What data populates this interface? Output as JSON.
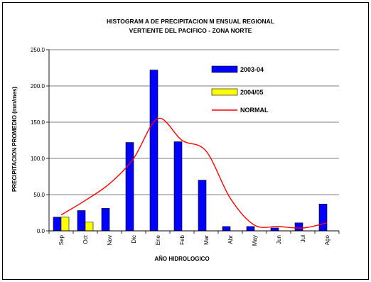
{
  "chart_data": {
    "type": "bar",
    "title": "HISTOGRAM A DE PRECIPITACION M ENSUAL REGIONAL",
    "subtitle": "VERTIENTE DEL PACIFICO - ZONA NORTE",
    "xlabel": "AÑO HIDROLOGICO",
    "ylabel": "PRECIPITACION PROMEDIO (mm/mes)",
    "ylim": [
      0,
      250
    ],
    "yticks": [
      "0.0",
      "50.0",
      "100.0",
      "150.0",
      "200.0",
      "250.0"
    ],
    "ytick_values": [
      0,
      50,
      100,
      150,
      200,
      250
    ],
    "grid": true,
    "legend_position": "top-right",
    "categories": [
      "Sep",
      "Oct",
      "Nov",
      "Dic",
      "Ene",
      "Feb",
      "Mar",
      "Abr",
      "May",
      "Jun",
      "Jul",
      "Ago"
    ],
    "series": [
      {
        "name": "2003-04",
        "type": "bar",
        "color": "#0000ff",
        "values": [
          19,
          28,
          31,
          122,
          222,
          123,
          70,
          6,
          6,
          4,
          11,
          37
        ]
      },
      {
        "name": "2004/05",
        "type": "bar",
        "color": "#ffff00",
        "values": [
          19,
          12,
          null,
          null,
          null,
          null,
          null,
          null,
          null,
          null,
          null,
          null
        ]
      },
      {
        "name": "NORMAL",
        "type": "line",
        "color": "#ff0000",
        "values": [
          22,
          42,
          65,
          100,
          155,
          125,
          110,
          45,
          8,
          6,
          4,
          11
        ]
      }
    ]
  }
}
